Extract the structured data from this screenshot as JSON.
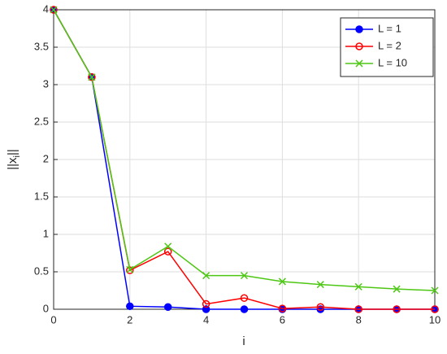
{
  "chart_data": {
    "type": "line",
    "xlabel": "i",
    "ylabel": [
      "||x",
      "i",
      "||"
    ],
    "x": [
      0,
      1,
      2,
      3,
      4,
      5,
      6,
      7,
      8,
      9,
      10
    ],
    "series": [
      {
        "name": "L = 1",
        "color": "#0000ff",
        "marker": "o",
        "filled": true,
        "values": [
          4,
          3.1,
          0.04,
          0.03,
          0,
          0,
          0,
          0,
          0,
          0,
          0
        ]
      },
      {
        "name": "L = 2",
        "color": "#ff0000",
        "marker": "o",
        "filled": false,
        "values": [
          4,
          3.1,
          0.52,
          0.77,
          0.07,
          0.15,
          0.01,
          0.03,
          0,
          0,
          0
        ]
      },
      {
        "name": "L = 10",
        "color": "#4dc714",
        "marker": "x",
        "filled": false,
        "values": [
          4,
          3.1,
          0.53,
          0.84,
          0.45,
          0.45,
          0.37,
          0.33,
          0.3,
          0.27,
          0.25
        ]
      }
    ],
    "xlim": [
      0,
      10
    ],
    "xticks": [
      0,
      2,
      4,
      6,
      8,
      10
    ],
    "ylim": [
      0,
      4
    ],
    "yticks": [
      0,
      0.5,
      1,
      1.5,
      2,
      2.5,
      3,
      3.5,
      4
    ],
    "grid": true,
    "legend": "northeast"
  }
}
